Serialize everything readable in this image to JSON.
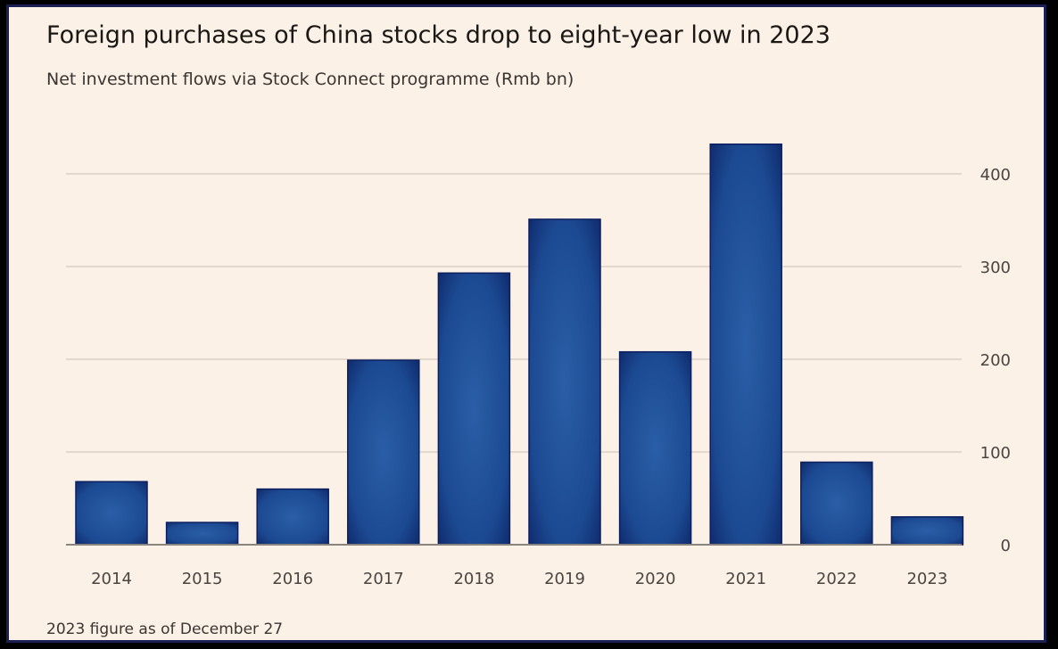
{
  "chart_data": {
    "type": "bar",
    "title": "Foreign purchases of China stocks drop to eight-year low in 2023",
    "subtitle": "Net investment flows via Stock Connect programme (Rmb bn)",
    "footnote": "2023 figure as of December 27",
    "categories": [
      "2014",
      "2015",
      "2016",
      "2017",
      "2018",
      "2019",
      "2020",
      "2021",
      "2022",
      "2023"
    ],
    "values": [
      68,
      24,
      60,
      199,
      293,
      351,
      208,
      432,
      89,
      30
    ],
    "ylim": [
      0,
      450
    ],
    "yticks": [
      "0",
      "100",
      "200",
      "300",
      "400"
    ],
    "ytick_values": [
      0,
      100,
      200,
      300,
      400
    ],
    "y_axis_side": "right",
    "grid": true,
    "bar_color": "#1f4e96",
    "bar_edge_color": "#0c1f60"
  }
}
